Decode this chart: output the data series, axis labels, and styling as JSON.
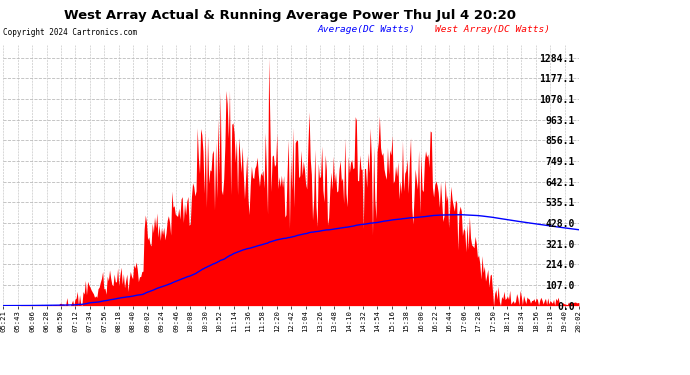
{
  "title": "West Array Actual & Running Average Power Thu Jul 4 20:20",
  "copyright": "Copyright 2024 Cartronics.com",
  "legend_avg": "Average(DC Watts)",
  "legend_west": "West Array(DC Watts)",
  "y_ticks": [
    0.0,
    107.0,
    214.0,
    321.0,
    428.0,
    535.1,
    642.1,
    749.1,
    856.1,
    963.1,
    1070.1,
    1177.1,
    1284.1
  ],
  "ylim": [
    0,
    1350
  ],
  "background_color": "#ffffff",
  "plot_bg_color": "#ffffff",
  "grid_color": "#bbbbbb",
  "fill_color": "#ff0000",
  "avg_line_color": "#0000ff",
  "title_color": "#000000",
  "copyright_color": "#000000",
  "legend_avg_color": "#0000ff",
  "legend_west_color": "#ff0000",
  "x_labels": [
    "05:21",
    "05:43",
    "06:06",
    "06:28",
    "06:50",
    "07:12",
    "07:34",
    "07:56",
    "08:18",
    "08:40",
    "09:02",
    "09:24",
    "09:46",
    "10:08",
    "10:30",
    "10:52",
    "11:14",
    "11:36",
    "11:58",
    "12:20",
    "12:42",
    "13:04",
    "13:26",
    "13:48",
    "14:10",
    "14:32",
    "14:54",
    "15:16",
    "15:38",
    "16:00",
    "16:22",
    "16:44",
    "17:06",
    "17:28",
    "17:50",
    "18:12",
    "18:34",
    "18:56",
    "19:18",
    "19:40",
    "20:02"
  ],
  "n_points": 500,
  "figsize": [
    6.9,
    3.75
  ],
  "dpi": 100
}
